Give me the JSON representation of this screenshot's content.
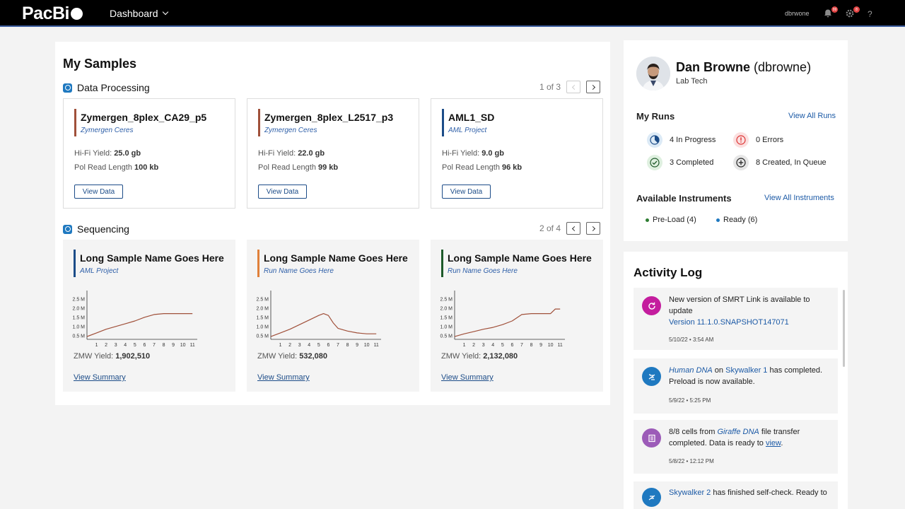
{
  "app": {
    "logo_text": "PacBi",
    "nav_label": "Dashboard",
    "username": "dbrwone",
    "notifications_count": "99",
    "settings_count": "8",
    "help_label": "?"
  },
  "samples": {
    "heading": "My Samples",
    "data_processing": {
      "title": "Data Processing",
      "pager": "1 of 3",
      "cards": [
        {
          "title": "Zymergen_8plex_CA29_p5",
          "subtitle": "Zymergen Ceres",
          "accent": "#a0503a",
          "hifi_label": "Hi-Fi Yield:",
          "hifi": "25.0 gb",
          "pol_label": "Pol Read Length",
          "pol": "100 kb",
          "button": "View Data"
        },
        {
          "title": "Zymergen_8plex_L2517_p3",
          "subtitle": "Zymergen Ceres",
          "accent": "#a0503a",
          "hifi_label": "Hi-Fi Yield:",
          "hifi": "22.0 gb",
          "pol_label": "Pol Read Length",
          "pol": "99 kb",
          "button": "View Data"
        },
        {
          "title": "AML1_SD",
          "subtitle": "AML Project",
          "accent": "#1c4c88",
          "hifi_label": "Hi-Fi Yield:",
          "hifi": "9.0 gb",
          "pol_label": "Pol Read Length",
          "pol": "96 kb",
          "button": "View Data"
        }
      ]
    },
    "sequencing": {
      "title": "Sequencing",
      "pager": "2 of 4",
      "cards": [
        {
          "title": "Long Sample Name Goes Here",
          "subtitle": "AML Project",
          "accent": "#1c4c88",
          "zmw_label": "ZMW Yield:",
          "zmw": "1,902,510",
          "link": "View Summary"
        },
        {
          "title": "Long Sample Name Goes Here",
          "subtitle": "Run Name Goes Here",
          "accent": "#e0803a",
          "zmw_label": "ZMW Yield:",
          "zmw": "532,080",
          "link": "View Summary"
        },
        {
          "title": "Long Sample Name Goes Here",
          "subtitle": "Run Name Goes Here",
          "accent": "#1d5a2a",
          "zmw_label": "ZMW Yield:",
          "zmw": "2,132,080",
          "link": "View Summary"
        }
      ]
    }
  },
  "chart_data": [
    {
      "type": "line",
      "x": [
        0,
        1,
        2,
        3,
        4,
        5,
        6,
        7,
        8,
        9,
        10,
        11
      ],
      "y": [
        0.45,
        0.65,
        0.85,
        1.0,
        1.15,
        1.3,
        1.5,
        1.65,
        1.7,
        1.7,
        1.7,
        1.7
      ],
      "ylim": [
        0.3,
        2.8
      ],
      "yticks": [
        "2.5 M",
        "2.0 M",
        "1.5 M",
        "1.0 M",
        "0.5 M"
      ],
      "xticks": [
        "1",
        "2",
        "3",
        "4",
        "5",
        "6",
        "7",
        "8",
        "9",
        "10",
        "11"
      ],
      "color": "#a0503a"
    },
    {
      "type": "line",
      "x": [
        0,
        1,
        2,
        3,
        4,
        5,
        5.5,
        6,
        6.5,
        7,
        8,
        9,
        10,
        11
      ],
      "y": [
        0.45,
        0.65,
        0.85,
        1.1,
        1.35,
        1.6,
        1.7,
        1.6,
        1.2,
        0.9,
        0.75,
        0.65,
        0.6,
        0.6
      ],
      "ylim": [
        0.3,
        2.8
      ],
      "yticks": [
        "2.5 M",
        "2.0 M",
        "1.5 M",
        "1.0 M",
        "0.5 M"
      ],
      "xticks": [
        "1",
        "2",
        "3",
        "4",
        "5",
        "6",
        "7",
        "8",
        "9",
        "10",
        "11"
      ],
      "color": "#a0503a"
    },
    {
      "type": "line",
      "x": [
        0,
        1,
        2,
        3,
        4,
        5,
        6,
        7,
        8,
        9,
        10,
        10.5,
        11
      ],
      "y": [
        0.45,
        0.6,
        0.72,
        0.85,
        0.95,
        1.1,
        1.3,
        1.65,
        1.7,
        1.7,
        1.7,
        1.95,
        1.95
      ],
      "ylim": [
        0.3,
        2.8
      ],
      "yticks": [
        "2.5 M",
        "2.0 M",
        "1.5 M",
        "1.0 M",
        "0.5 M"
      ],
      "xticks": [
        "1",
        "2",
        "3",
        "4",
        "5",
        "6",
        "7",
        "8",
        "9",
        "10",
        "11"
      ],
      "color": "#a0503a"
    }
  ],
  "profile": {
    "name": "Dan Browne",
    "handle": "(dbrowne)",
    "role": "Lab Tech",
    "runs_heading": "My Runs",
    "runs_link": "View All Runs",
    "stats": {
      "in_progress": "4 In Progress",
      "errors": "0 Errors",
      "completed": "3 Completed",
      "queued": "8 Created, In Queue"
    },
    "instruments_heading": "Available Instruments",
    "instruments_link": "View All Instruments",
    "preload": "Pre-Load (4)",
    "ready": "Ready (6)"
  },
  "activity": {
    "heading": "Activity Log",
    "items": [
      {
        "text": "New version of SMRT Link is available to update",
        "link": "Version 11.1.0.SNAPSHOT147071",
        "date": "5/10/22 • 3:54 AM"
      },
      {
        "a": "Human DNA",
        "b": " on ",
        "c": "Skywalker 1",
        "d": " has completed. Preload is now available.",
        "date": "5/9/22 • 5:25 PM"
      },
      {
        "a": "8/8 cells from ",
        "b": "Giraffe DNA",
        "c": " file transfer completed. Data is ready to ",
        "d": "view",
        "e": ".",
        "date": "5/8/22 • 12:12 PM"
      },
      {
        "a": "Skywalker 2",
        "b": " has finished self-check. Ready to"
      }
    ]
  }
}
